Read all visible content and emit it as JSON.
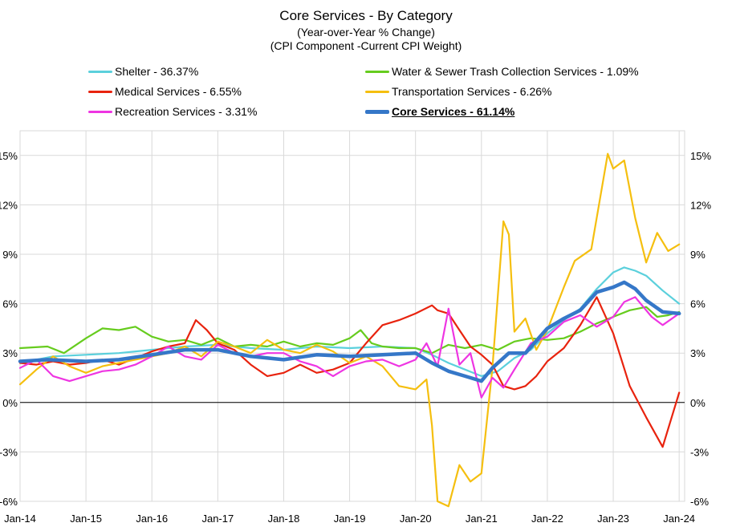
{
  "chart_data": {
    "type": "line",
    "title": "Core Services - By Category",
    "subtitle": "(Year-over-Year % Change)",
    "subtitle2": "(CPI Component -Current CPI Weight)",
    "x_ticks": [
      "Jan-14",
      "Jan-15",
      "Jan-16",
      "Jan-17",
      "Jan-18",
      "Jan-19",
      "Jan-20",
      "Jan-21",
      "Jan-22",
      "Jan-23",
      "Jan-24"
    ],
    "y_ticks": [
      "15%",
      "12%",
      "9%",
      "6%",
      "3%",
      "0%",
      "-3%",
      "-6%"
    ],
    "ylim": [
      -6,
      16.5
    ],
    "xlim": [
      "2014-01",
      "2024-02"
    ],
    "grid": true,
    "legend_position": "top",
    "series": [
      {
        "name": "Shelter - 36.37%",
        "color": "#5bd0dc",
        "width": 2.2,
        "points": [
          [
            "2014-01",
            2.4
          ],
          [
            "2014-07",
            2.8
          ],
          [
            "2015-01",
            2.9
          ],
          [
            "2015-07",
            3.0
          ],
          [
            "2016-01",
            3.2
          ],
          [
            "2016-07",
            3.4
          ],
          [
            "2017-01",
            3.5
          ],
          [
            "2017-07",
            3.3
          ],
          [
            "2018-01",
            3.2
          ],
          [
            "2018-07",
            3.4
          ],
          [
            "2019-01",
            3.3
          ],
          [
            "2019-07",
            3.4
          ],
          [
            "2020-01",
            3.3
          ],
          [
            "2020-04",
            2.9
          ],
          [
            "2020-07",
            2.4
          ],
          [
            "2020-10",
            2.0
          ],
          [
            "2021-01",
            1.6
          ],
          [
            "2021-04",
            1.9
          ],
          [
            "2021-07",
            2.7
          ],
          [
            "2021-10",
            3.2
          ],
          [
            "2022-01",
            4.2
          ],
          [
            "2022-04",
            5.0
          ],
          [
            "2022-07",
            5.7
          ],
          [
            "2022-10",
            6.9
          ],
          [
            "2023-01",
            7.9
          ],
          [
            "2023-03",
            8.2
          ],
          [
            "2023-05",
            8.0
          ],
          [
            "2023-07",
            7.7
          ],
          [
            "2023-10",
            6.8
          ],
          [
            "2024-01",
            6.0
          ]
        ]
      },
      {
        "name": "Water & Sewer Trash Collection Services - 1.09%",
        "color": "#66cc1e",
        "width": 2.2,
        "points": [
          [
            "2014-01",
            3.3
          ],
          [
            "2014-06",
            3.4
          ],
          [
            "2014-09",
            3.0
          ],
          [
            "2015-01",
            3.9
          ],
          [
            "2015-04",
            4.5
          ],
          [
            "2015-07",
            4.4
          ],
          [
            "2015-10",
            4.6
          ],
          [
            "2016-01",
            4.0
          ],
          [
            "2016-04",
            3.7
          ],
          [
            "2016-07",
            3.8
          ],
          [
            "2016-10",
            3.5
          ],
          [
            "2017-01",
            3.9
          ],
          [
            "2017-04",
            3.4
          ],
          [
            "2017-07",
            3.5
          ],
          [
            "2017-10",
            3.4
          ],
          [
            "2018-01",
            3.7
          ],
          [
            "2018-04",
            3.4
          ],
          [
            "2018-07",
            3.6
          ],
          [
            "2018-10",
            3.5
          ],
          [
            "2019-01",
            3.9
          ],
          [
            "2019-03",
            4.4
          ],
          [
            "2019-05",
            3.6
          ],
          [
            "2019-07",
            3.4
          ],
          [
            "2019-10",
            3.3
          ],
          [
            "2020-01",
            3.3
          ],
          [
            "2020-04",
            3.0
          ],
          [
            "2020-07",
            3.5
          ],
          [
            "2020-10",
            3.3
          ],
          [
            "2021-01",
            3.5
          ],
          [
            "2021-04",
            3.2
          ],
          [
            "2021-07",
            3.7
          ],
          [
            "2021-10",
            3.9
          ],
          [
            "2022-01",
            3.8
          ],
          [
            "2022-04",
            3.9
          ],
          [
            "2022-07",
            4.3
          ],
          [
            "2022-10",
            4.8
          ],
          [
            "2023-01",
            5.2
          ],
          [
            "2023-04",
            5.6
          ],
          [
            "2023-07",
            5.8
          ],
          [
            "2023-09",
            5.2
          ],
          [
            "2023-11",
            5.3
          ],
          [
            "2024-01",
            5.5
          ]
        ]
      },
      {
        "name": "Medical Services - 6.55%",
        "color": "#e8230e",
        "width": 2.2,
        "points": [
          [
            "2014-01",
            2.4
          ],
          [
            "2014-04",
            2.3
          ],
          [
            "2014-07",
            2.5
          ],
          [
            "2014-10",
            2.3
          ],
          [
            "2015-01",
            2.4
          ],
          [
            "2015-04",
            2.6
          ],
          [
            "2015-07",
            2.3
          ],
          [
            "2015-10",
            2.7
          ],
          [
            "2016-01",
            3.1
          ],
          [
            "2016-04",
            3.4
          ],
          [
            "2016-07",
            3.6
          ],
          [
            "2016-09",
            5.0
          ],
          [
            "2016-11",
            4.4
          ],
          [
            "2017-01",
            3.6
          ],
          [
            "2017-04",
            3.2
          ],
          [
            "2017-07",
            2.3
          ],
          [
            "2017-10",
            1.6
          ],
          [
            "2018-01",
            1.8
          ],
          [
            "2018-04",
            2.3
          ],
          [
            "2018-07",
            1.8
          ],
          [
            "2018-10",
            2.0
          ],
          [
            "2019-01",
            2.4
          ],
          [
            "2019-04",
            3.6
          ],
          [
            "2019-07",
            4.7
          ],
          [
            "2019-10",
            5.0
          ],
          [
            "2020-01",
            5.4
          ],
          [
            "2020-04",
            5.9
          ],
          [
            "2020-05",
            5.6
          ],
          [
            "2020-07",
            5.4
          ],
          [
            "2020-09",
            4.4
          ],
          [
            "2020-11",
            3.4
          ],
          [
            "2021-01",
            2.9
          ],
          [
            "2021-03",
            2.3
          ],
          [
            "2021-05",
            1.0
          ],
          [
            "2021-07",
            0.8
          ],
          [
            "2021-09",
            1.0
          ],
          [
            "2021-11",
            1.6
          ],
          [
            "2022-01",
            2.5
          ],
          [
            "2022-04",
            3.3
          ],
          [
            "2022-07",
            4.7
          ],
          [
            "2022-10",
            6.4
          ],
          [
            "2023-01",
            4.2
          ],
          [
            "2023-04",
            1.0
          ],
          [
            "2023-07",
            -0.9
          ],
          [
            "2023-10",
            -2.7
          ],
          [
            "2024-01",
            0.6
          ]
        ]
      },
      {
        "name": "Transportation Services - 6.26%",
        "color": "#f5bf0f",
        "width": 2.2,
        "points": [
          [
            "2014-01",
            1.1
          ],
          [
            "2014-04",
            2.0
          ],
          [
            "2014-07",
            2.8
          ],
          [
            "2014-10",
            2.2
          ],
          [
            "2015-01",
            1.8
          ],
          [
            "2015-04",
            2.2
          ],
          [
            "2015-07",
            2.4
          ],
          [
            "2015-10",
            2.6
          ],
          [
            "2016-01",
            2.8
          ],
          [
            "2016-04",
            3.0
          ],
          [
            "2016-07",
            3.4
          ],
          [
            "2016-10",
            2.8
          ],
          [
            "2017-01",
            3.7
          ],
          [
            "2017-04",
            3.4
          ],
          [
            "2017-07",
            3.0
          ],
          [
            "2017-10",
            3.8
          ],
          [
            "2018-01",
            3.2
          ],
          [
            "2018-04",
            3.0
          ],
          [
            "2018-07",
            3.5
          ],
          [
            "2018-10",
            3.1
          ],
          [
            "2019-01",
            2.4
          ],
          [
            "2019-04",
            2.8
          ],
          [
            "2019-07",
            2.2
          ],
          [
            "2019-10",
            1.0
          ],
          [
            "2020-01",
            0.8
          ],
          [
            "2020-03",
            1.4
          ],
          [
            "2020-04",
            -1.4
          ],
          [
            "2020-05",
            -6.0
          ],
          [
            "2020-07",
            -6.3
          ],
          [
            "2020-09",
            -3.8
          ],
          [
            "2020-11",
            -4.8
          ],
          [
            "2021-01",
            -4.3
          ],
          [
            "2021-03",
            2.1
          ],
          [
            "2021-05",
            11.0
          ],
          [
            "2021-06",
            10.2
          ],
          [
            "2021-07",
            4.3
          ],
          [
            "2021-09",
            5.1
          ],
          [
            "2021-11",
            3.2
          ],
          [
            "2022-01",
            4.4
          ],
          [
            "2022-04",
            7.0
          ],
          [
            "2022-06",
            8.6
          ],
          [
            "2022-09",
            9.3
          ],
          [
            "2022-12",
            15.1
          ],
          [
            "2023-01",
            14.2
          ],
          [
            "2023-03",
            14.7
          ],
          [
            "2023-05",
            11.2
          ],
          [
            "2023-07",
            8.5
          ],
          [
            "2023-09",
            10.3
          ],
          [
            "2023-11",
            9.2
          ],
          [
            "2024-01",
            9.6
          ]
        ]
      },
      {
        "name": "Recreation Services - 3.31%",
        "color": "#ee35e2",
        "width": 2.2,
        "points": [
          [
            "2014-01",
            2.1
          ],
          [
            "2014-04",
            2.6
          ],
          [
            "2014-07",
            1.6
          ],
          [
            "2014-10",
            1.3
          ],
          [
            "2015-01",
            1.6
          ],
          [
            "2015-04",
            1.9
          ],
          [
            "2015-07",
            2.0
          ],
          [
            "2015-10",
            2.3
          ],
          [
            "2016-01",
            2.8
          ],
          [
            "2016-04",
            3.4
          ],
          [
            "2016-07",
            2.8
          ],
          [
            "2016-10",
            2.6
          ],
          [
            "2017-01",
            3.5
          ],
          [
            "2017-04",
            3.0
          ],
          [
            "2017-07",
            2.8
          ],
          [
            "2017-10",
            3.0
          ],
          [
            "2018-01",
            3.0
          ],
          [
            "2018-04",
            2.5
          ],
          [
            "2018-07",
            2.2
          ],
          [
            "2018-10",
            1.6
          ],
          [
            "2019-01",
            2.2
          ],
          [
            "2019-04",
            2.5
          ],
          [
            "2019-07",
            2.6
          ],
          [
            "2019-10",
            2.2
          ],
          [
            "2020-01",
            2.6
          ],
          [
            "2020-03",
            3.6
          ],
          [
            "2020-05",
            2.2
          ],
          [
            "2020-07",
            5.7
          ],
          [
            "2020-09",
            2.3
          ],
          [
            "2020-11",
            3.0
          ],
          [
            "2021-01",
            0.3
          ],
          [
            "2021-03",
            1.5
          ],
          [
            "2021-05",
            0.9
          ],
          [
            "2021-07",
            2.0
          ],
          [
            "2021-10",
            3.6
          ],
          [
            "2022-01",
            4.0
          ],
          [
            "2022-04",
            4.9
          ],
          [
            "2022-07",
            5.3
          ],
          [
            "2022-10",
            4.6
          ],
          [
            "2023-01",
            5.2
          ],
          [
            "2023-03",
            6.1
          ],
          [
            "2023-05",
            6.4
          ],
          [
            "2023-08",
            5.2
          ],
          [
            "2023-10",
            4.7
          ],
          [
            "2024-01",
            5.4
          ]
        ]
      },
      {
        "name": "Core Services - 61.14%",
        "color": "#3577c8",
        "width": 4.5,
        "points": [
          [
            "2014-01",
            2.5
          ],
          [
            "2014-06",
            2.6
          ],
          [
            "2015-01",
            2.5
          ],
          [
            "2015-07",
            2.6
          ],
          [
            "2016-01",
            2.9
          ],
          [
            "2016-07",
            3.2
          ],
          [
            "2017-01",
            3.2
          ],
          [
            "2017-07",
            2.8
          ],
          [
            "2018-01",
            2.6
          ],
          [
            "2018-07",
            2.9
          ],
          [
            "2019-01",
            2.8
          ],
          [
            "2019-07",
            2.9
          ],
          [
            "2020-01",
            3.0
          ],
          [
            "2020-04",
            2.4
          ],
          [
            "2020-07",
            1.9
          ],
          [
            "2020-10",
            1.6
          ],
          [
            "2021-01",
            1.3
          ],
          [
            "2021-03",
            2.1
          ],
          [
            "2021-06",
            3.0
          ],
          [
            "2021-09",
            3.0
          ],
          [
            "2022-01",
            4.5
          ],
          [
            "2022-04",
            5.1
          ],
          [
            "2022-07",
            5.6
          ],
          [
            "2022-10",
            6.7
          ],
          [
            "2023-01",
            7.0
          ],
          [
            "2023-03",
            7.3
          ],
          [
            "2023-05",
            6.9
          ],
          [
            "2023-07",
            6.2
          ],
          [
            "2023-10",
            5.5
          ],
          [
            "2024-01",
            5.4
          ]
        ]
      }
    ]
  }
}
